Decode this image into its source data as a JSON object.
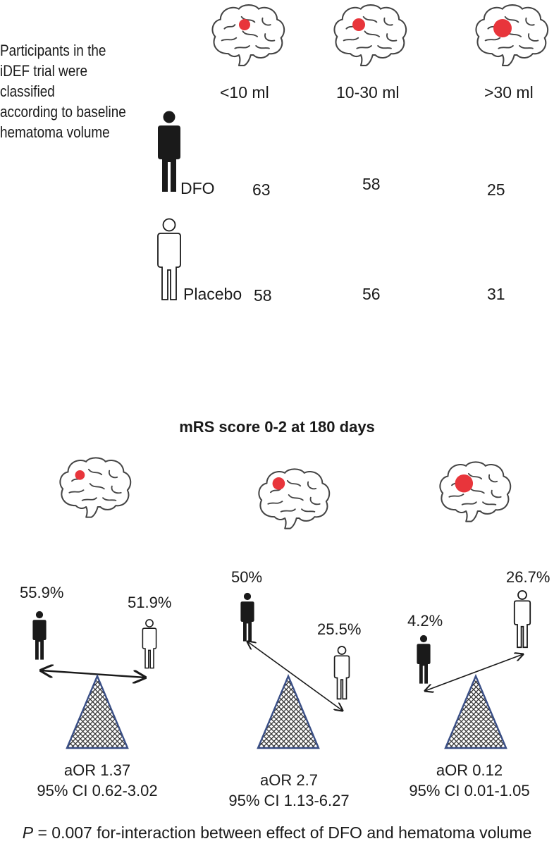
{
  "intro": {
    "line1": "Participants in the",
    "line2": "iDEF trial were classified",
    "line3": "according to baseline",
    "line4": "hematoma volume"
  },
  "volume_groups": [
    "<10 ml",
    "10-30 ml",
    ">30 ml"
  ],
  "arms": {
    "dfo": {
      "label": "DFO",
      "counts": [
        "63",
        "58",
        "25"
      ]
    },
    "placebo": {
      "label": "Placebo",
      "counts": [
        "58",
        "56",
        "31"
      ]
    }
  },
  "outcome_title": "mRS score 0-2 at 180 days",
  "outcomes": [
    {
      "dfo_pct": "55.9%",
      "placebo_pct": "51.9%",
      "aor": "aOR 1.37",
      "ci": "95% CI 0.62-3.02"
    },
    {
      "dfo_pct": "50%",
      "placebo_pct": "25.5%",
      "aor": "aOR 2.7",
      "ci": "95% CI 1.13-6.27"
    },
    {
      "dfo_pct": "4.2%",
      "placebo_pct": "26.7%",
      "aor": "aOR 0.12",
      "ci": "95% CI 0.01-1.05"
    }
  ],
  "footer": {
    "p": "P",
    "rest": " = 0.007 for-interaction between effect of DFO and hematoma volume"
  },
  "colors": {
    "hematoma": "#e8353b",
    "fulcrum_stroke": "#3a4f86",
    "figure": "#1a1a1a"
  }
}
